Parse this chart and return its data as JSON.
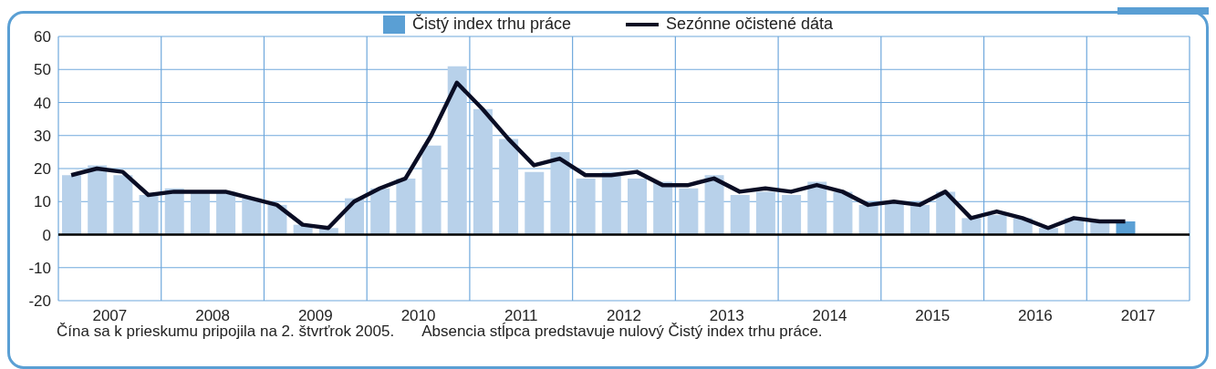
{
  "chart_data": {
    "type": "bar",
    "x": [
      2007,
      2007.25,
      2007.5,
      2007.75,
      2008,
      2008.25,
      2008.5,
      2008.75,
      2009,
      2009.25,
      2009.5,
      2009.75,
      2010,
      2010.25,
      2010.5,
      2010.75,
      2011,
      2011.25,
      2011.5,
      2011.75,
      2012,
      2012.25,
      2012.5,
      2012.75,
      2013,
      2013.25,
      2013.5,
      2013.75,
      2014,
      2014.25,
      2014.5,
      2014.75,
      2015,
      2015.25,
      2015.5,
      2015.75,
      2016,
      2016.25,
      2016.5,
      2016.75,
      2017,
      2017.25
    ],
    "series": [
      {
        "name": "Čistý index trhu práce",
        "color": "#5a9fd4",
        "colors": [
          "#b8d1ea",
          "#b8d1ea",
          "#b8d1ea",
          "#b8d1ea",
          "#b8d1ea",
          "#b8d1ea",
          "#b8d1ea",
          "#b8d1ea",
          "#b8d1ea",
          "#b8d1ea",
          "#b8d1ea",
          "#b8d1ea",
          "#b8d1ea",
          "#b8d1ea",
          "#b8d1ea",
          "#b8d1ea",
          "#b8d1ea",
          "#b8d1ea",
          "#b8d1ea",
          "#b8d1ea",
          "#b8d1ea",
          "#b8d1ea",
          "#b8d1ea",
          "#b8d1ea",
          "#b8d1ea",
          "#b8d1ea",
          "#b8d1ea",
          "#b8d1ea",
          "#b8d1ea",
          "#b8d1ea",
          "#b8d1ea",
          "#b8d1ea",
          "#b8d1ea",
          "#b8d1ea",
          "#b8d1ea",
          "#b8d1ea",
          "#b8d1ea",
          "#b8d1ea",
          "#b8d1ea",
          "#b8d1ea",
          "#b8d1ea",
          "#5a9fd4"
        ],
        "values": [
          18,
          21,
          18,
          12,
          14,
          13,
          13,
          11,
          9,
          3,
          2,
          11,
          14,
          17,
          27,
          51,
          38,
          29,
          19,
          25,
          17,
          19,
          17,
          16,
          14,
          18,
          12,
          13,
          12,
          16,
          13,
          9,
          10,
          9,
          13,
          5,
          6,
          5,
          2,
          5,
          4,
          4
        ]
      },
      {
        "name": "Sezónne očistené dáta",
        "type": "line",
        "color": "#0a0d24",
        "values": [
          18,
          20,
          19,
          12,
          13,
          13,
          13,
          11,
          9,
          3,
          2,
          10,
          14,
          17,
          30,
          46,
          38,
          29,
          21,
          23,
          18,
          18,
          19,
          15,
          15,
          17,
          13,
          14,
          13,
          15,
          13,
          9,
          10,
          9,
          13,
          5,
          7,
          5,
          2,
          5,
          4,
          4
        ]
      }
    ],
    "xlim": [
      2006.875,
      2017.875
    ],
    "xticks": [
      {
        "value": 2006.875,
        "label": null
      },
      {
        "value": 2007.375,
        "label": "2007"
      },
      {
        "value": 2007.875,
        "label": null
      },
      {
        "value": 2008.375,
        "label": "2008"
      },
      {
        "value": 2008.875,
        "label": null
      },
      {
        "value": 2009.375,
        "label": "2009"
      },
      {
        "value": 2009.875,
        "label": null
      },
      {
        "value": 2010.375,
        "label": "2010"
      },
      {
        "value": 2010.875,
        "label": null
      },
      {
        "value": 2011.375,
        "label": "2011"
      },
      {
        "value": 2011.875,
        "label": null
      },
      {
        "value": 2012.375,
        "label": "2012"
      },
      {
        "value": 2012.875,
        "label": null
      },
      {
        "value": 2013.375,
        "label": "2013"
      },
      {
        "value": 2013.875,
        "label": null
      },
      {
        "value": 2014.375,
        "label": "2014"
      },
      {
        "value": 2014.875,
        "label": null
      },
      {
        "value": 2015.375,
        "label": "2015"
      },
      {
        "value": 2015.875,
        "label": null
      },
      {
        "value": 2016.375,
        "label": "2016"
      },
      {
        "value": 2016.875,
        "label": null
      },
      {
        "value": 2017.375,
        "label": "2017"
      },
      {
        "value": 2017.875,
        "label": null
      }
    ],
    "ylim": [
      -20,
      60
    ],
    "yticks": [
      -20,
      -10,
      0,
      10,
      20,
      30,
      40,
      50,
      60
    ],
    "grid": true,
    "legend": "top",
    "marker": "none",
    "line_style": "solid",
    "ref_lines": [
      {
        "axis": "y",
        "value": 0,
        "color": "#000000"
      }
    ],
    "annotations": [
      "Čína sa k prieskumu pripojila na 2. štvrťrok 2005.",
      "Absencia stĺpca predstavuje nulový Čistý index trhu práce."
    ]
  }
}
